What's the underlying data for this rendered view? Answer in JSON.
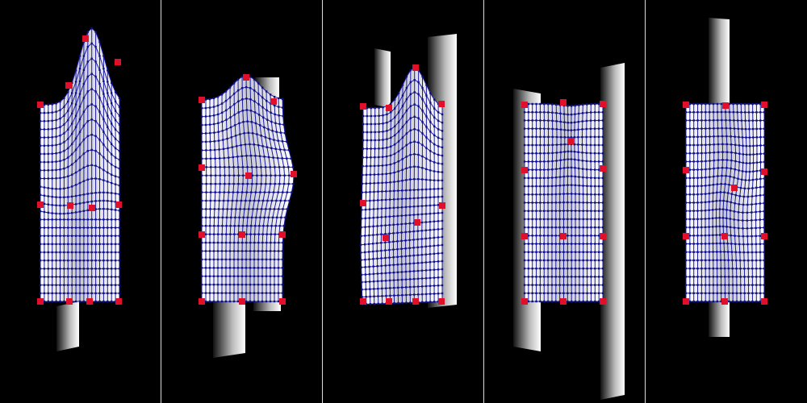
{
  "figure": {
    "panel_count": 5,
    "colors": {
      "background": "#000000",
      "mesh_fill": "#ffffff",
      "mesh_shade": "#c8c8d0",
      "grid_line": "#1a1aa8",
      "grid_dot": "#10107a",
      "control_point": "#e0102a",
      "divider": "#dcdcdc"
    },
    "panels": [
      {
        "id": "panel-1",
        "deformation": "bulge-top"
      },
      {
        "id": "panel-2",
        "deformation": "bulge-side"
      },
      {
        "id": "panel-3",
        "deformation": "fold-left"
      },
      {
        "id": "panel-4",
        "deformation": "pinch-center"
      },
      {
        "id": "panel-5",
        "deformation": "twist-center"
      }
    ]
  }
}
